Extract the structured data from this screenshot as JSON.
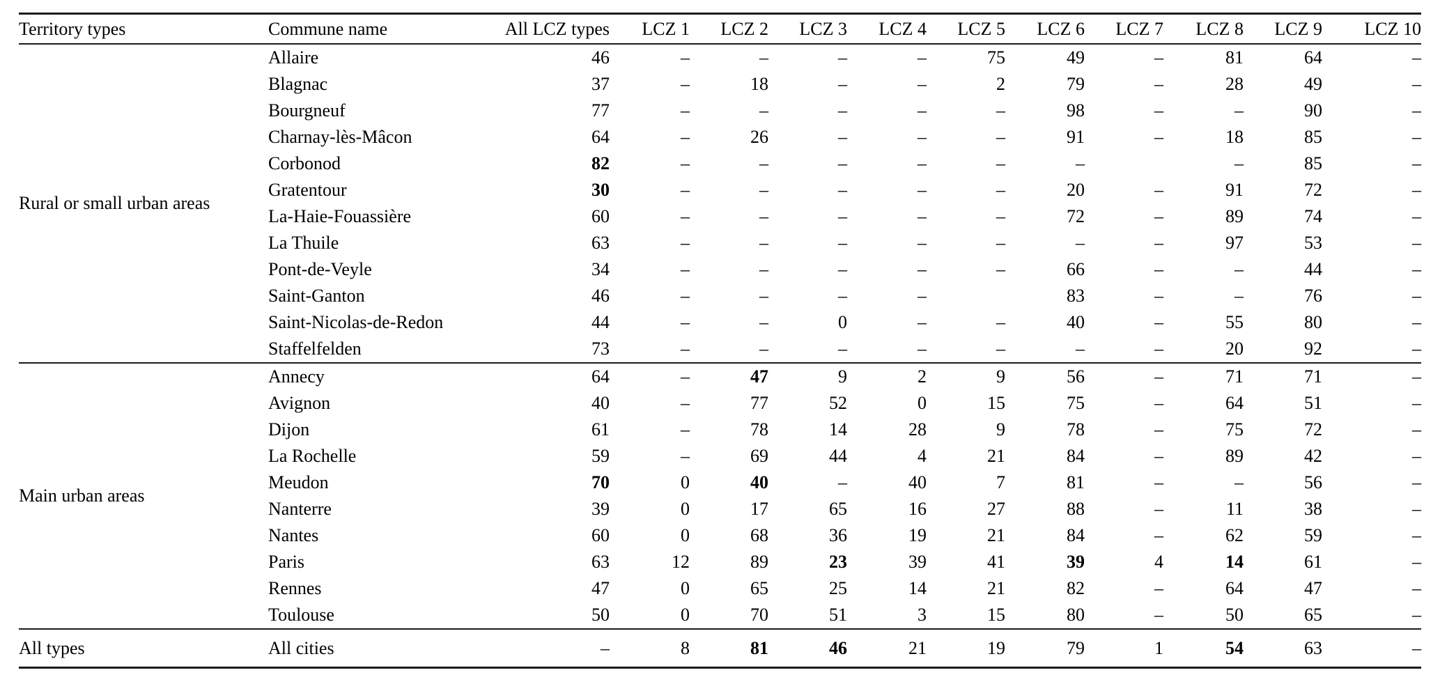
{
  "table": {
    "columns": [
      "Territory types",
      "Commune name",
      "All LCZ types",
      "LCZ 1",
      "LCZ 2",
      "LCZ 3",
      "LCZ 4",
      "LCZ 5",
      "LCZ 6",
      "LCZ 7",
      "LCZ 8",
      "LCZ 9",
      "LCZ 10"
    ],
    "dash": "–",
    "groups": [
      {
        "territory": "Rural or small urban areas",
        "rows": [
          {
            "commune": "Allaire",
            "values": [
              "46",
              "–",
              "–",
              "–",
              "–",
              "75",
              "49",
              "–",
              "81",
              "64",
              "–"
            ],
            "bold": []
          },
          {
            "commune": "Blagnac",
            "values": [
              "37",
              "–",
              "18",
              "–",
              "–",
              "2",
              "79",
              "–",
              "28",
              "49",
              "–"
            ],
            "bold": []
          },
          {
            "commune": "Bourgneuf",
            "values": [
              "77",
              "–",
              "–",
              "–",
              "–",
              "–",
              "98",
              "–",
              "–",
              "90",
              "–"
            ],
            "bold": []
          },
          {
            "commune": "Charnay-lès-Mâcon",
            "values": [
              "64",
              "–",
              "26",
              "–",
              "–",
              "–",
              "91",
              "–",
              "18",
              "85",
              "–"
            ],
            "bold": []
          },
          {
            "commune": "Corbonod",
            "values": [
              "82",
              "–",
              "–",
              "–",
              "–",
              "–",
              "–",
              "",
              "–",
              "85",
              "–"
            ],
            "bold": [
              0
            ]
          },
          {
            "commune": "Gratentour",
            "values": [
              "30",
              "–",
              "–",
              "–",
              "–",
              "–",
              "20",
              "–",
              "91",
              "72",
              "–"
            ],
            "bold": [
              0
            ]
          },
          {
            "commune": "La-Haie-Fouassière",
            "values": [
              "60",
              "–",
              "–",
              "–",
              "–",
              "–",
              "72",
              "–",
              "89",
              "74",
              "–"
            ],
            "bold": []
          },
          {
            "commune": "La Thuile",
            "values": [
              "63",
              "–",
              "–",
              "–",
              "–",
              "–",
              "–",
              "–",
              "97",
              "53",
              "–"
            ],
            "bold": []
          },
          {
            "commune": "Pont-de-Veyle",
            "values": [
              "34",
              "–",
              "–",
              "–",
              "–",
              "–",
              "66",
              "–",
              "–",
              "44",
              "–"
            ],
            "bold": []
          },
          {
            "commune": "Saint-Ganton",
            "values": [
              "46",
              "–",
              "–",
              "–",
              "–",
              "",
              "83",
              "–",
              "–",
              "76",
              "–"
            ],
            "bold": []
          },
          {
            "commune": "Saint-Nicolas-de-Redon",
            "values": [
              "44",
              "–",
              "–",
              "0",
              "–",
              "–",
              "40",
              "–",
              "55",
              "80",
              "–"
            ],
            "bold": []
          },
          {
            "commune": "Staffelfelden",
            "values": [
              "73",
              "–",
              "–",
              "–",
              "–",
              "–",
              "–",
              "–",
              "20",
              "92",
              "–"
            ],
            "bold": []
          }
        ]
      },
      {
        "territory": "Main urban areas",
        "rows": [
          {
            "commune": "Annecy",
            "values": [
              "64",
              "–",
              "47",
              "9",
              "2",
              "9",
              "56",
              "–",
              "71",
              "71",
              "–"
            ],
            "bold": [
              2
            ]
          },
          {
            "commune": "Avignon",
            "values": [
              "40",
              "–",
              "77",
              "52",
              "0",
              "15",
              "75",
              "–",
              "64",
              "51",
              "–"
            ],
            "bold": []
          },
          {
            "commune": "Dijon",
            "values": [
              "61",
              "–",
              "78",
              "14",
              "28",
              "9",
              "78",
              "–",
              "75",
              "72",
              "–"
            ],
            "bold": []
          },
          {
            "commune": "La Rochelle",
            "values": [
              "59",
              "–",
              "69",
              "44",
              "4",
              "21",
              "84",
              "–",
              "89",
              "42",
              "–"
            ],
            "bold": []
          },
          {
            "commune": "Meudon",
            "values": [
              "70",
              "0",
              "40",
              "–",
              "40",
              "7",
              "81",
              "–",
              "–",
              "56",
              "–"
            ],
            "bold": [
              0,
              2
            ]
          },
          {
            "commune": "Nanterre",
            "values": [
              "39",
              "0",
              "17",
              "65",
              "16",
              "27",
              "88",
              "–",
              "11",
              "38",
              "–"
            ],
            "bold": []
          },
          {
            "commune": "Nantes",
            "values": [
              "60",
              "0",
              "68",
              "36",
              "19",
              "21",
              "84",
              "–",
              "62",
              "59",
              "–"
            ],
            "bold": []
          },
          {
            "commune": "Paris",
            "values": [
              "63",
              "12",
              "89",
              "23",
              "39",
              "41",
              "39",
              "4",
              "14",
              "61",
              "–"
            ],
            "bold": [
              3,
              6,
              8
            ]
          },
          {
            "commune": "Rennes",
            "values": [
              "47",
              "0",
              "65",
              "25",
              "14",
              "21",
              "82",
              "–",
              "64",
              "47",
              "–"
            ],
            "bold": []
          },
          {
            "commune": "Toulouse",
            "values": [
              "50",
              "0",
              "70",
              "51",
              "3",
              "15",
              "80",
              "–",
              "50",
              "65",
              "–"
            ],
            "bold": []
          }
        ]
      },
      {
        "territory": "All types",
        "rows": [
          {
            "commune": "All cities",
            "values": [
              "–",
              "8",
              "81",
              "46",
              "21",
              "19",
              "79",
              "1",
              "54",
              "63",
              "–"
            ],
            "bold": [
              2,
              3,
              8
            ]
          }
        ]
      }
    ]
  }
}
